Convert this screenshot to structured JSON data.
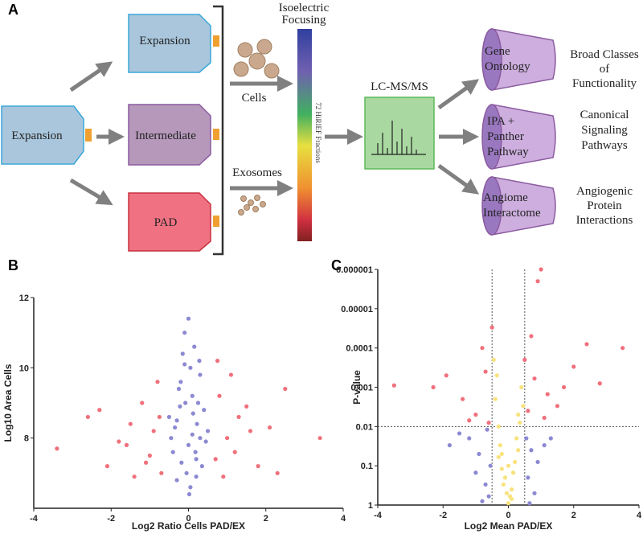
{
  "panel_labels": [
    "A",
    "B",
    "C"
  ],
  "diagram": {
    "source": "Expansion",
    "conditions": [
      "Expansion",
      "Intermediate",
      "PAD"
    ],
    "samples": [
      "Cells",
      "Exosomes"
    ],
    "separation": {
      "title": [
        "Isoelectric",
        "Focusing"
      ],
      "bar_label": "72 HiRIEF Fractions"
    },
    "ms": "LC-MS/MS",
    "analyses": [
      {
        "tool": [
          "Gene",
          "Ontology"
        ],
        "result": [
          "Broad Classes",
          "of",
          "Functionality"
        ]
      },
      {
        "tool": [
          "IPA +",
          "Panther",
          "Pathway"
        ],
        "result": [
          "Canonical",
          "Signaling",
          "Pathways"
        ]
      },
      {
        "tool": [
          "Angiome",
          "Interactome"
        ],
        "result": [
          "Angiogenic",
          "Protein",
          "Interactions"
        ]
      }
    ]
  },
  "chart_data": [
    {
      "type": "scatter",
      "x_label": "Log2 Ratio Cells PAD/EX",
      "y_label": "Log10 Area Cells",
      "xlim": [
        -4,
        4
      ],
      "xticks": [
        -4,
        -2,
        0,
        2,
        4
      ],
      "ylim": [
        6,
        12
      ],
      "yticks": [
        8,
        10,
        12
      ],
      "series": [
        {
          "color": "#8c89d2",
          "x": [
            -0.3,
            0.1,
            0.2,
            -0.1,
            0,
            0.3,
            -0.4,
            0.4,
            -0.2,
            0.15,
            -0.05,
            0.05,
            0.25,
            -0.35,
            0.35,
            -0.15,
            0.1,
            -0.25,
            0.2,
            0,
            -0.45,
            0.45,
            -0.1,
            0.3,
            -0.3,
            0.05,
            0.12,
            -0.18,
            0.22,
            -0.08,
            0.5,
            -0.5,
            0.02,
            0.18,
            -0.22,
            0.28
          ],
          "values": [
            8.5,
            9.2,
            7.4,
            10.1,
            11.4,
            8.0,
            7.6,
            8.8,
            9.6,
            10.6,
            7.0,
            6.6,
            9.0,
            8.3,
            7.2,
            10.4,
            8.1,
            9.4,
            6.9,
            7.8,
            8.0,
            7.9,
            11.0,
            9.8,
            6.8,
            10.0,
            8.7,
            7.3,
            8.4,
            9.0,
            8.2,
            8.6,
            6.4,
            7.6,
            8.9,
            10.2
          ]
        },
        {
          "color": "#f0707c",
          "x": [
            -3.4,
            -2.6,
            -2.1,
            -1.8,
            -1.5,
            -1.2,
            -1,
            -0.8,
            -0.7,
            -1.4,
            -0.9,
            -2.3,
            -1.1,
            0.7,
            0.8,
            1,
            1.2,
            1.5,
            1.8,
            2.1,
            2.5,
            0.9,
            1.3,
            0.75,
            1.1,
            3.4,
            -0.75,
            1.6,
            -1.6,
            2.3
          ],
          "values": [
            7.7,
            8.6,
            7.2,
            7.9,
            8.4,
            9.0,
            7.5,
            9.6,
            7.0,
            6.9,
            8.2,
            8.8,
            7.3,
            7.4,
            9.2,
            8.0,
            7.6,
            8.9,
            7.2,
            8.3,
            9.4,
            6.9,
            8.6,
            10.2,
            9.8,
            8.0,
            8.6,
            8.2,
            7.8,
            7.0
          ]
        }
      ]
    },
    {
      "type": "scatter",
      "x_label": "Log2 Mean PAD/EX",
      "y_label": "P-value",
      "xlim": [
        -4,
        4
      ],
      "xticks": [
        -4,
        -2,
        0,
        2,
        4
      ],
      "ylim": [
        1,
        1e-06
      ],
      "log_y": true,
      "yticks": [
        1e-06,
        1e-05,
        0.0001,
        0.001,
        0.01,
        0.1,
        1
      ],
      "reference_lines": {
        "x": [
          -0.5,
          0.5
        ],
        "y": [
          0.01
        ]
      },
      "series": [
        {
          "color": "#8c89d2",
          "x": [
            -1.2,
            -0.9,
            -0.7,
            -0.6,
            -1.5,
            0.6,
            0.7,
            0.9,
            1.1,
            -0.8,
            0.8,
            -1,
            1.3,
            -0.65,
            0.65,
            -1.8,
            -0.55,
            0.55
          ],
          "values": [
            0.02,
            0.05,
            0.3,
            0.6,
            0.015,
            0.2,
            0.04,
            0.08,
            0.03,
            0.8,
            0.5,
            0.15,
            0.02,
            0.012,
            0.9,
            0.03,
            0.1,
            0.02
          ]
        },
        {
          "color": "#f0707c",
          "x": [
            -2.3,
            -1.9,
            -1.4,
            -1,
            -0.8,
            -0.6,
            -0.5,
            0.5,
            0.6,
            0.8,
            1,
            1.2,
            1.5,
            2,
            2.4,
            3.5,
            -3.5,
            0.9,
            1.1,
            -0.7,
            0.7,
            1.7,
            -1.2,
            2.8
          ],
          "values": [
            0.001,
            0.0005,
            0.002,
            0.005,
            0.0001,
            0.008,
            3e-05,
            0.0002,
            0.004,
            0.0006,
            1e-06,
            0.0015,
            0.003,
            0.0003,
            8e-05,
            0.0001,
            0.0009,
            2e-06,
            0.006,
            0.0004,
            5e-05,
            0.001,
            0.007,
            0.0008
          ]
        },
        {
          "color": "#f8e27c",
          "x": [
            -0.4,
            -0.3,
            -0.2,
            -0.1,
            0,
            0.1,
            0.2,
            0.3,
            0.4,
            -0.35,
            -0.15,
            0.05,
            0.25,
            0.45,
            -0.45,
            -0.25,
            0.15,
            0.35,
            -0.05,
            0.0,
            0.1,
            -0.2,
            0.3,
            -0.3
          ],
          "values": [
            0.002,
            0.01,
            0.05,
            0.2,
            0.9,
            0.4,
            0.08,
            0.005,
            0.001,
            0.0005,
            0.3,
            0.6,
            0.02,
            0.003,
            0.0002,
            0.03,
            0.15,
            0.008,
            0.5,
            0.1,
            0.7,
            0.12,
            0.04,
            0.06
          ]
        }
      ]
    }
  ]
}
